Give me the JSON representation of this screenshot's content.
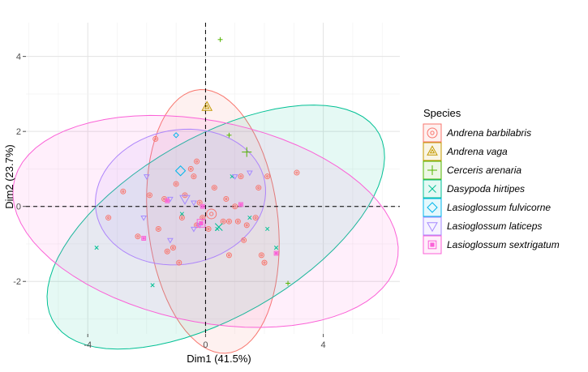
{
  "chart_data": {
    "type": "scatter",
    "title": "",
    "xlabel": "Dim1 (41.5%)",
    "ylabel": "Dim2 (23.7%)",
    "xlim": [
      -6.1,
      6.6
    ],
    "ylim": [
      -3.4,
      4.9
    ],
    "xticks": [
      -4,
      0,
      4
    ],
    "yticks": [
      -2,
      0,
      2,
      4
    ],
    "xtick_labels": [
      "-4",
      "0",
      "4"
    ],
    "ytick_labels": [
      "-2",
      "0",
      "2",
      "4"
    ],
    "grid": true,
    "reference_lines": "dashed lines at x=0 and y=0",
    "legend": {
      "title": "Species",
      "placement": "right"
    },
    "series": [
      {
        "name": "Andrena barbilabris",
        "color": "#F8766D",
        "marker": "circle-dot",
        "points": [
          [
            -3.3,
            -0.3
          ],
          [
            -2.8,
            0.4
          ],
          [
            -2.3,
            -0.8
          ],
          [
            -1.9,
            0.3
          ],
          [
            -1.7,
            1.8
          ],
          [
            -1.6,
            -0.6
          ],
          [
            -1.4,
            0.2
          ],
          [
            -1.3,
            -1.2
          ],
          [
            -1.1,
            -1.1
          ],
          [
            -1.0,
            0.6
          ],
          [
            -0.9,
            -1.5
          ],
          [
            -0.8,
            -0.3
          ],
          [
            -0.7,
            0.3
          ],
          [
            -0.5,
            1.0
          ],
          [
            -0.4,
            0.8
          ],
          [
            -0.3,
            -0.5
          ],
          [
            -0.3,
            1.2
          ],
          [
            -0.2,
            0.1
          ],
          [
            -0.1,
            -0.3
          ],
          [
            0.1,
            -0.6
          ],
          [
            0.3,
            0.5
          ],
          [
            0.6,
            -0.4
          ],
          [
            0.7,
            0.2
          ],
          [
            0.8,
            -0.4
          ],
          [
            1.0,
            0.0
          ],
          [
            1.1,
            -0.4
          ],
          [
            1.2,
            0.8
          ],
          [
            1.4,
            -0.5
          ],
          [
            1.7,
            -0.3
          ],
          [
            1.8,
            0.5
          ],
          [
            1.3,
            -0.9
          ],
          [
            0.8,
            -1.3
          ],
          [
            1.9,
            -1.3
          ],
          [
            2.1,
            0.8
          ],
          [
            3.1,
            0.9
          ],
          [
            2.0,
            -1.5
          ]
        ],
        "centroid": [
          0.2,
          -0.2
        ]
      },
      {
        "name": "Andrena vaga",
        "color": "#C49A00",
        "marker": "triangle-dot",
        "points": [],
        "centroid": [
          0.05,
          2.65
        ]
      },
      {
        "name": "Cerceris arenaria",
        "color": "#53B400",
        "marker": "plus",
        "points": [
          [
            0.5,
            4.45
          ],
          [
            0.8,
            1.9
          ],
          [
            2.8,
            -2.05
          ]
        ],
        "centroid": [
          1.4,
          1.45
        ]
      },
      {
        "name": "Dasypoda hirtipes",
        "color": "#00C094",
        "marker": "x",
        "points": [
          [
            -3.7,
            -1.1
          ],
          [
            -1.8,
            -2.1
          ],
          [
            -0.8,
            -0.2
          ],
          [
            0.4,
            -0.6
          ],
          [
            0.9,
            0.8
          ],
          [
            1.5,
            -0.3
          ],
          [
            2.1,
            -0.6
          ],
          [
            2.4,
            -1.1
          ]
        ],
        "centroid": [
          0.45,
          -0.55
        ]
      },
      {
        "name": "Lasioglossum fulvicorne",
        "color": "#00B6EB",
        "marker": "diamond",
        "points": [
          [
            -1.0,
            1.9
          ]
        ],
        "centroid": [
          -0.85,
          0.95
        ]
      },
      {
        "name": "Lasioglossum laticeps",
        "color": "#A58AFF",
        "marker": "triangle-down",
        "points": [
          [
            -2.0,
            0.8
          ],
          [
            -2.1,
            -0.3
          ],
          [
            -1.2,
            -0.9
          ],
          [
            -0.2,
            -0.5
          ],
          [
            1.0,
            0.8
          ],
          [
            1.5,
            0.9
          ],
          [
            -1.2,
            0.2
          ],
          [
            -0.4,
            -0.6
          ],
          [
            -0.4,
            0.1
          ]
        ],
        "centroid": [
          -0.7,
          0.2
        ]
      },
      {
        "name": "Lasioglossum sextrigatum",
        "color": "#FB61D7",
        "marker": "square-box",
        "points": [
          [
            -2.1,
            -0.85
          ],
          [
            -1.3,
            0.15
          ],
          [
            -0.1,
            0.0
          ],
          [
            1.2,
            0.05
          ],
          [
            2.4,
            -1.25
          ]
        ],
        "centroid": [
          -0.15,
          -0.45
        ]
      }
    ],
    "ellipses": [
      {
        "series": "Andrena barbilabris",
        "cx": 0.25,
        "cy": -0.4,
        "rx": 3.55,
        "ry": 2.2,
        "angle": 100
      },
      {
        "series": "Andrena vaga",
        "cx": 0.0,
        "cy": 0.0,
        "rx": 0,
        "ry": 0,
        "angle": 0
      },
      {
        "series": "Cerceris arenaria",
        "cx": 0.0,
        "cy": 0.0,
        "rx": 0,
        "ry": 0,
        "angle": 0
      },
      {
        "series": "Dasypoda hirtipes",
        "cx": 0.35,
        "cy": -0.55,
        "rx": 6.1,
        "ry": 2.5,
        "angle": 22
      },
      {
        "series": "Lasioglossum fulvicorne",
        "cx": 0.0,
        "cy": 0.0,
        "rx": 0,
        "ry": 0,
        "angle": 0
      },
      {
        "series": "Lasioglossum laticeps",
        "cx": -0.85,
        "cy": 0.25,
        "rx": 2.9,
        "ry": 1.8,
        "angle": 5
      },
      {
        "series": "Lasioglossum sextrigatum",
        "cx": 0.0,
        "cy": -0.4,
        "rx": 6.6,
        "ry": 2.7,
        "angle": -8
      }
    ]
  }
}
